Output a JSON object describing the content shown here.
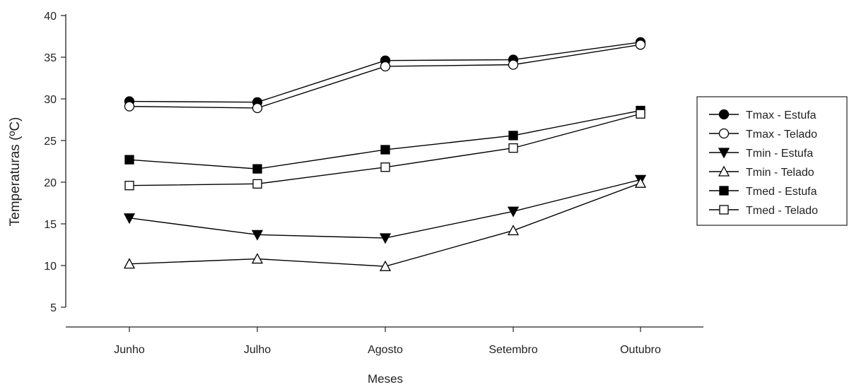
{
  "chart_data": {
    "type": "line",
    "title": "",
    "xlabel": "Meses",
    "ylabel": "Temperaturas (ºC)",
    "categories": [
      "Junho",
      "Julho",
      "Agosto",
      "Setembro",
      "Outubro"
    ],
    "ylim": [
      5,
      40
    ],
    "yticks": [
      5,
      10,
      15,
      20,
      25,
      30,
      35,
      40
    ],
    "grid": false,
    "legend_position": "right",
    "series": [
      {
        "name": "Tmax - Estufa",
        "marker": "circle-filled",
        "values": [
          29.7,
          29.6,
          34.6,
          34.7,
          36.8
        ]
      },
      {
        "name": "Tmax - Telado",
        "marker": "circle-open",
        "values": [
          29.1,
          28.9,
          33.9,
          34.1,
          36.5
        ]
      },
      {
        "name": "Tmin - Estufa",
        "marker": "triangle-down-filled",
        "values": [
          15.7,
          13.7,
          13.3,
          16.5,
          20.3
        ]
      },
      {
        "name": "Tmin - Telado",
        "marker": "triangle-up-open",
        "values": [
          10.2,
          10.8,
          9.9,
          14.2,
          19.9
        ]
      },
      {
        "name": "Tmed - Estufa",
        "marker": "square-filled",
        "values": [
          22.7,
          21.6,
          23.9,
          25.6,
          28.6
        ]
      },
      {
        "name": "Tmed - Telado",
        "marker": "square-open",
        "values": [
          19.6,
          19.8,
          21.8,
          24.1,
          28.2
        ]
      }
    ]
  }
}
